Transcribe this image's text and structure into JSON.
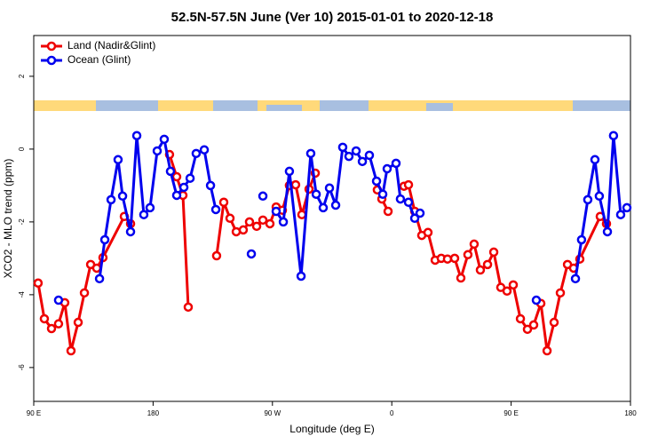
{
  "chart_data": {
    "type": "line",
    "title": "52.5N-57.5N June (Ver 10)   2015-01-01 to 2020-12-18",
    "x_label": "Longitude (deg E)",
    "y_label": "XCO2 - MLO trend (ppm)",
    "xlim": [
      90,
      540
    ],
    "ylim": [
      -6.93,
      3.12
    ],
    "xticks": [
      {
        "value": 90,
        "label": "90 E"
      },
      180,
      {
        "value": 270,
        "label": "90 W"
      },
      {
        "value": 360,
        "label": "0"
      },
      {
        "value": 450,
        "label": "90 E"
      },
      {
        "value": 540,
        "label": "180"
      }
    ],
    "yticks": [
      -6,
      -4,
      -2,
      0,
      2
    ],
    "legend_position": "upper left",
    "series": [
      {
        "name": "Land (Nadir&Glint)",
        "color": "#ee0000",
        "x": [
          93.3,
          98.0,
          103.4,
          108.7,
          113.4,
          118.1,
          123.5,
          128.2,
          132.9,
          137.5,
          142.2,
          158.3,
          163.0,
          null,
          192.4,
          197.8,
          202.5,
          206.5,
          null,
          227.9,
          233.3,
          238.0,
          242.7,
          248.0,
          252.7,
          258.1,
          262.8,
          268.1,
          272.8,
          277.5,
          282.8,
          287.5,
          292.2,
          297.6,
          302.3,
          null,
          349.1,
          352.5,
          357.2,
          null,
          369.2,
          372.6,
          377.3,
          382.6,
          387.3,
          392.7,
          397.3,
          402.0,
          407.4,
          412.1,
          417.4,
          422.1,
          426.8,
          432.2,
          436.9,
          442.2,
          446.9,
          451.6,
          457.0,
          462.3,
          467.0,
          472.4,
          477.1,
          482.4,
          487.1,
          492.5,
          497.1,
          501.8,
          517.2,
          521.9
        ],
        "values": [
          -3.68,
          -4.66,
          -4.93,
          -4.8,
          -4.22,
          -5.54,
          -4.76,
          -3.95,
          -3.17,
          -3.27,
          -2.98,
          -1.85,
          -2.05,
          null,
          -0.15,
          -0.76,
          -1.27,
          -4.34,
          null,
          -2.93,
          -1.46,
          -1.9,
          -2.27,
          -2.22,
          -2.0,
          -2.12,
          -1.95,
          -2.05,
          -1.59,
          -1.68,
          -1.0,
          -0.98,
          -1.8,
          -1.1,
          -0.66,
          null,
          -1.12,
          -1.37,
          -1.71,
          null,
          -1.02,
          -0.98,
          -1.71,
          -2.37,
          -2.29,
          -3.05,
          -3.0,
          -3.02,
          -3.0,
          -3.54,
          -2.9,
          -2.61,
          -3.32,
          -3.17,
          -2.83,
          -3.8,
          -3.9,
          -3.73,
          -4.66,
          -4.95,
          -4.83,
          -4.24,
          -5.54,
          -4.76,
          -3.95,
          -3.17,
          -3.27,
          -3.02,
          -1.85,
          -2.05
        ]
      },
      {
        "name": "Ocean (Glint)",
        "color": "#0000ee",
        "x": [
          108.7,
          null,
          139.6,
          143.6,
          148.3,
          153.6,
          157.0,
          163.0,
          167.7,
          173.0,
          177.7,
          183.1,
          188.4,
          193.1,
          197.8,
          203.2,
          207.9,
          212.5,
          218.6,
          223.3,
          227.3,
          null,
          254.1,
          null,
          262.8,
          null,
          272.8,
          278.2,
          282.8,
          291.6,
          298.9,
          303.0,
          308.3,
          313.0,
          317.7,
          323.0,
          327.7,
          333.1,
          337.8,
          343.1,
          348.5,
          353.2,
          356.5,
          363.2,
          366.5,
          372.6,
          377.3,
          381.3,
          null,
          469.0,
          null,
          498.5,
          503.1,
          507.8,
          513.2,
          516.5,
          522.6,
          527.2,
          532.6,
          537.3
        ],
        "values": [
          -4.15,
          null,
          -3.56,
          -2.49,
          -1.39,
          -0.29,
          -1.29,
          -2.27,
          0.37,
          -1.8,
          -1.61,
          -0.05,
          0.27,
          -0.61,
          -1.27,
          -1.05,
          -0.8,
          -0.12,
          -0.02,
          -1.0,
          -1.66,
          null,
          -2.88,
          null,
          -1.29,
          null,
          -1.71,
          -2.0,
          -0.61,
          -3.49,
          -0.12,
          -1.24,
          -1.61,
          -1.07,
          -1.54,
          0.05,
          -0.2,
          -0.05,
          -0.34,
          -0.17,
          -0.88,
          -1.24,
          -0.54,
          -0.39,
          -1.37,
          -1.46,
          -1.9,
          -1.76,
          null,
          -4.15,
          null,
          -3.56,
          -2.49,
          -1.39,
          -0.29,
          -1.29,
          -2.27,
          0.37,
          -1.8,
          -1.61
        ]
      }
    ]
  }
}
